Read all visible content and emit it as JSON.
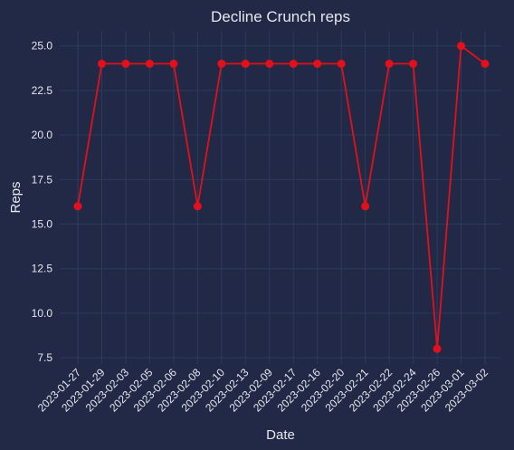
{
  "chart_data": {
    "type": "line",
    "title": "Decline Crunch reps",
    "xlabel": "Date",
    "ylabel": "Reps",
    "categories": [
      "2023-01-27",
      "2023-01-29",
      "2023-02-03",
      "2023-02-05",
      "2023-02-06",
      "2023-02-08",
      "2023-02-10",
      "2023-02-13",
      "2023-02-09",
      "2023-02-17",
      "2023-02-16",
      "2023-02-20",
      "2023-02-21",
      "2023-02-22",
      "2023-02-24",
      "2023-02-26",
      "2023-03-01",
      "2023-03-02"
    ],
    "series": [
      {
        "values": [
          16,
          24,
          24,
          24,
          24,
          16,
          24,
          24,
          24,
          24,
          24,
          24,
          16,
          24,
          24,
          8,
          25,
          24
        ]
      }
    ],
    "yticks": [
      "7.5",
      "10.0",
      "12.5",
      "15.0",
      "17.5",
      "20.0",
      "22.5",
      "25.0"
    ],
    "ylim": [
      7.15,
      25.85
    ],
    "grid": true,
    "colors": {
      "line": "#e3101b",
      "background": "#212946",
      "grid": "#2e3a5c",
      "text": "#e6e8ef"
    }
  }
}
